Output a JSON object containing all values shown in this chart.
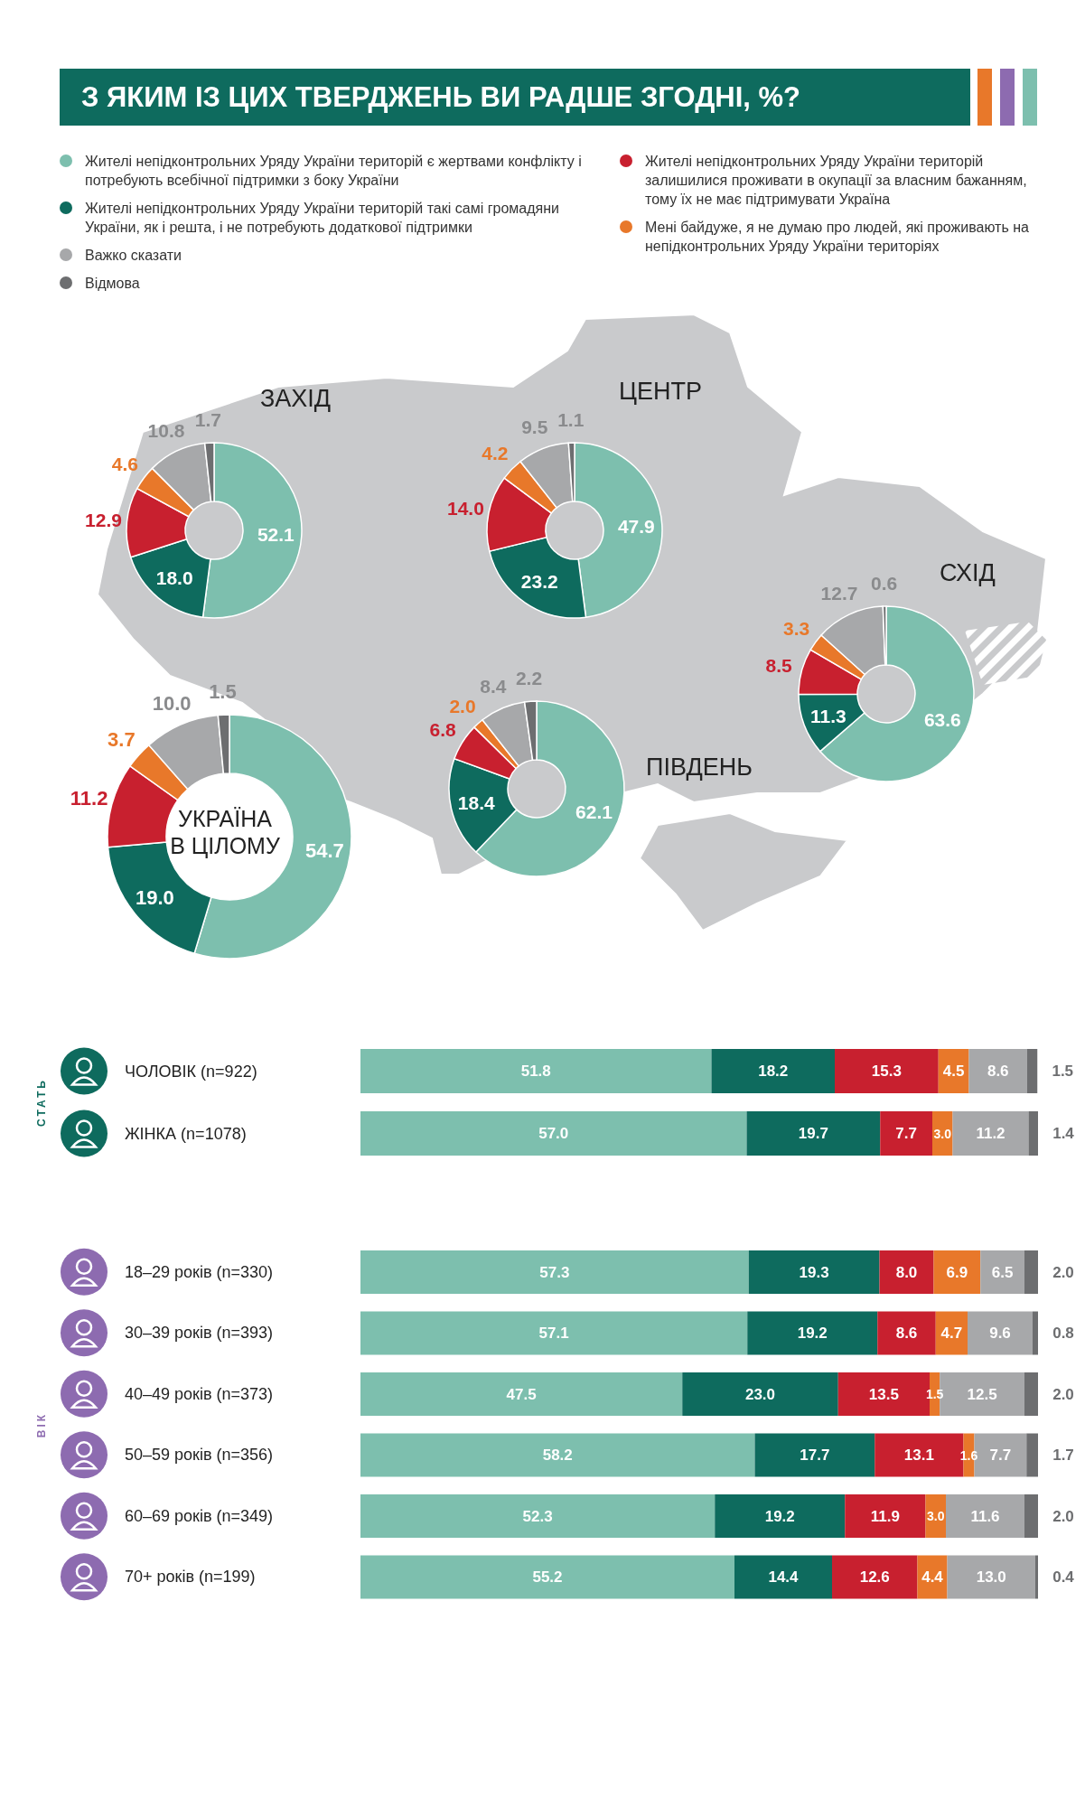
{
  "chart_data": [
    {
      "type": "donut",
      "title": "З ЯКИМ ІЗ ЦИХ ТВЕРДЖЕНЬ ВИ РАДШЕ ЗГОДНІ, %?",
      "subtitle": "ЗАХІД",
      "legend": "top",
      "categories": [
        "Жителі непідконтрольних Уряду України територій є жертвами конфлікту і потребують всебічної підтримки з боку України",
        "Жителі непідконтрольних Уряду України територій такі самі громадяни України, як і решта, і не потребують додаткової підтримки",
        "Жителі непідконтрольних Уряду України територій залишилися проживати в окупації за власним бажанням, тому їх не має підтримувати Україна",
        "Мені байдуже, я не думаю про людей, які проживають на непідконтрольних Уряду України територіях",
        "Важко сказати",
        "Відмова"
      ],
      "values": [
        52.1,
        18.0,
        12.9,
        4.6,
        10.8,
        1.7
      ],
      "value_labels": [
        "52.1",
        "18.0",
        "12.9",
        "4.6",
        "10.8",
        "1.7"
      ],
      "colors": [
        "#7dbfae",
        "#0e6b5e",
        "#c8202f",
        "#e8782a",
        "#a7a8aa",
        "#6d6e70"
      ]
    },
    {
      "type": "donut",
      "subtitle": "ЦЕНТР",
      "categories": [
        null,
        null,
        null,
        null,
        null,
        null
      ],
      "values": [
        47.9,
        23.2,
        14.0,
        4.2,
        9.5,
        1.1
      ],
      "value_labels": [
        "47.9",
        "23.2",
        "14.0",
        "4.2",
        "9.5",
        "1.1"
      ],
      "colors": [
        "#7dbfae",
        "#0e6b5e",
        "#c8202f",
        "#e8782a",
        "#a7a8aa",
        "#6d6e70"
      ]
    },
    {
      "type": "donut",
      "subtitle": "СХІД",
      "categories": [
        null,
        null,
        null,
        null,
        null,
        null
      ],
      "values": [
        63.6,
        11.3,
        8.5,
        3.3,
        12.7,
        0.6
      ],
      "value_labels": [
        "63.6",
        "11.3",
        "8.5",
        "3.3",
        "12.7",
        "0.6"
      ],
      "colors": [
        "#7dbfae",
        "#0e6b5e",
        "#c8202f",
        "#e8782a",
        "#a7a8aa",
        "#6d6e70"
      ]
    },
    {
      "type": "donut",
      "subtitle": "УКРАЇНА В ЦІЛОМУ",
      "categories": [
        null,
        null,
        null,
        null,
        null,
        null
      ],
      "values": [
        54.7,
        19.0,
        11.2,
        3.7,
        10.0,
        1.5
      ],
      "value_labels": [
        "54.7",
        "19.0",
        "11.2",
        "3.7",
        "10.0",
        "1.5"
      ],
      "colors": [
        "#7dbfae",
        "#0e6b5e",
        "#c8202f",
        "#e8782a",
        "#a7a8aa",
        "#6d6e70"
      ]
    },
    {
      "type": "donut",
      "subtitle": "ПІВДЕНЬ",
      "categories": [
        null,
        null,
        null,
        null,
        null,
        null
      ],
      "values": [
        62.1,
        18.4,
        6.8,
        2.0,
        8.4,
        2.2
      ],
      "value_labels": [
        "62.1",
        "18.4",
        "6.8",
        "2.0",
        "8.4",
        "2.2"
      ],
      "colors": [
        "#7dbfae",
        "#0e6b5e",
        "#c8202f",
        "#e8782a",
        "#a7a8aa",
        "#6d6e70"
      ]
    },
    {
      "type": "bar",
      "orientation": "horizontal",
      "stacked": true,
      "ylabel": "СТАТЬ",
      "categories": [
        "ЧОЛОВІК (n=922)",
        "ЖІНКА (n=1078)"
      ],
      "series": [
        {
          "color": "#7dbfae",
          "values": [
            51.8,
            57.0
          ],
          "value_labels": [
            "51.8",
            "57.0"
          ]
        },
        {
          "color": "#0e6b5e",
          "values": [
            18.2,
            19.7
          ],
          "value_labels": [
            "18.2",
            "19.7"
          ]
        },
        {
          "color": "#c8202f",
          "values": [
            15.3,
            7.7
          ],
          "value_labels": [
            "15.3",
            "7.7"
          ]
        },
        {
          "color": "#e8782a",
          "values": [
            4.5,
            3.0
          ],
          "value_labels": [
            "4.5",
            "3.0"
          ]
        },
        {
          "color": "#a7a8aa",
          "values": [
            8.6,
            11.2
          ],
          "value_labels": [
            "8.6",
            "11.2"
          ]
        },
        {
          "color": "#6d6e70",
          "values": [
            1.5,
            1.4
          ],
          "value_labels": [
            "1.5",
            "1.4"
          ]
        }
      ]
    },
    {
      "type": "bar",
      "orientation": "horizontal",
      "stacked": true,
      "ylabel": "ВІК",
      "categories": [
        "18–29 років (n=330)",
        "30–39 років (n=393)",
        "40–49 років (n=373)",
        "50–59 років (n=356)",
        "60–69 років (n=349)",
        "70+ років (n=199)"
      ],
      "series": [
        {
          "color": "#7dbfae",
          "values": [
            57.3,
            57.1,
            47.5,
            58.2,
            52.3,
            55.2
          ],
          "value_labels": [
            "57.3",
            "57.1",
            "47.5",
            "58.2",
            "52.3",
            "55.2"
          ]
        },
        {
          "color": "#0e6b5e",
          "values": [
            19.3,
            19.2,
            23.0,
            17.7,
            19.2,
            14.4
          ],
          "value_labels": [
            "19.3",
            "19.2",
            "23.0",
            "17.7",
            "19.2",
            "14.4"
          ]
        },
        {
          "color": "#c8202f",
          "values": [
            8.0,
            8.6,
            13.5,
            13.1,
            11.9,
            12.6
          ],
          "value_labels": [
            "8.0",
            "8.6",
            "13.5",
            "13.1",
            "11.9",
            "12.6"
          ]
        },
        {
          "color": "#e8782a",
          "values": [
            6.9,
            4.7,
            1.5,
            1.6,
            3.0,
            4.4
          ],
          "value_labels": [
            "6.9",
            "4.7",
            "1.5",
            "1.6",
            "3.0",
            "4.4"
          ]
        },
        {
          "color": "#a7a8aa",
          "values": [
            6.5,
            9.6,
            12.5,
            7.7,
            11.6,
            13.0
          ],
          "value_labels": [
            "6.5",
            "9.6",
            "12.5",
            "7.7",
            "11.6",
            "13.0"
          ]
        },
        {
          "color": "#6d6e70",
          "values": [
            2.0,
            0.8,
            2.0,
            1.7,
            2.0,
            0.4
          ],
          "value_labels": [
            "2.0",
            "0.8",
            "2.0",
            "1.7",
            "2.0",
            "0.4"
          ]
        }
      ]
    }
  ]
}
